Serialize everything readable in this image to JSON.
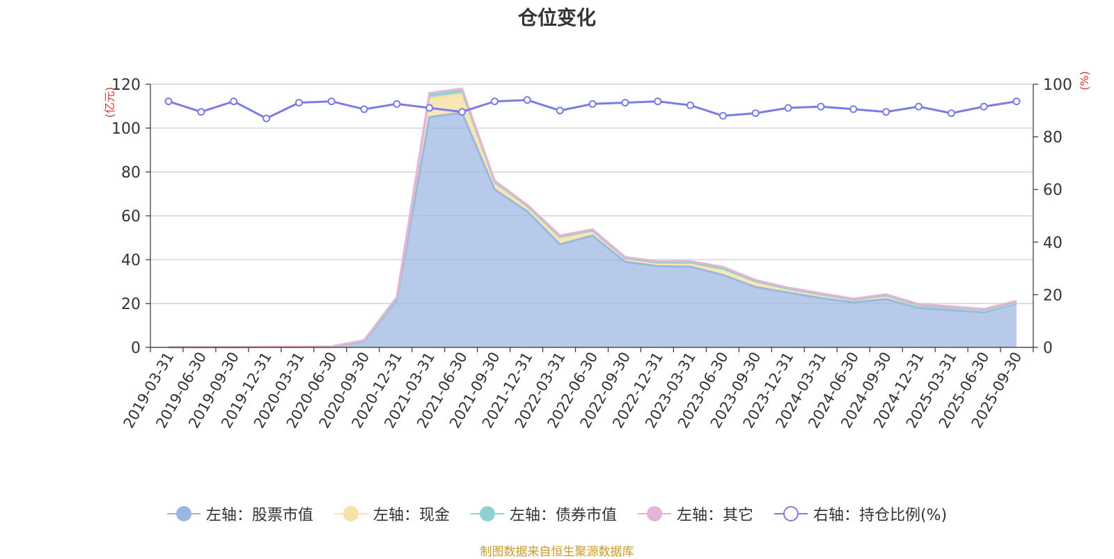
{
  "chart_data": {
    "type": "area",
    "title": "仓位变化",
    "categories": [
      "2019-03-31",
      "2019-06-30",
      "2019-09-30",
      "2019-12-31",
      "2020-03-31",
      "2020-06-30",
      "2020-09-30",
      "2020-12-31",
      "2021-03-31",
      "2021-06-30",
      "2021-09-30",
      "2021-12-31",
      "2022-03-31",
      "2022-06-30",
      "2022-09-30",
      "2022-12-31",
      "2023-03-31",
      "2023-06-30",
      "2023-09-30",
      "2023-12-31",
      "2024-03-31",
      "2024-06-30",
      "2024-09-30",
      "2024-12-31",
      "2025-03-31",
      "2025-06-30",
      "2025-09-30"
    ],
    "left_axis": {
      "unit": "(亿元)",
      "ylim": [
        0,
        120
      ],
      "ticks": [
        0,
        20,
        40,
        60,
        80,
        100,
        120
      ]
    },
    "right_axis": {
      "unit": "(%)",
      "ylim": [
        0,
        100
      ],
      "ticks": [
        0,
        20,
        40,
        60,
        80,
        100
      ]
    },
    "series": [
      {
        "name": "左轴：股票市值",
        "axis": "left",
        "stack": true,
        "color": "#9bb6e0",
        "values": [
          0.1,
          0.1,
          0.1,
          0.2,
          0.2,
          0.3,
          2.8,
          21.5,
          105,
          107,
          72,
          62,
          47,
          51,
          39,
          37,
          36.8,
          33,
          27.5,
          25,
          22.5,
          20.5,
          22,
          18,
          17,
          16,
          20
        ]
      },
      {
        "name": "左轴：现金",
        "axis": "left",
        "stack": true,
        "color": "#f7e2a6",
        "values": [
          0,
          0,
          0,
          0,
          0,
          0,
          0.3,
          1,
          8.5,
          8.5,
          2.5,
          2,
          3,
          2,
          1.5,
          1.5,
          1.7,
          2.7,
          2.5,
          1.5,
          1.5,
          1,
          1.5,
          1,
          1,
          0.8,
          0.5
        ]
      },
      {
        "name": "左轴：债券市值",
        "axis": "left",
        "stack": true,
        "color": "#8fd1d3",
        "values": [
          0,
          0,
          0,
          0,
          0,
          0,
          0,
          0,
          1.5,
          1.5,
          1,
          0.5,
          0.5,
          0.3,
          0.2,
          0.2,
          0.2,
          0.2,
          0.2,
          0.2,
          0.2,
          0.2,
          0.2,
          0.2,
          0.2,
          0.2,
          0.2
        ]
      },
      {
        "name": "左轴：其它",
        "axis": "left",
        "stack": true,
        "color": "#e5b4d7",
        "values": [
          0,
          0,
          0,
          0,
          0.1,
          0.1,
          0.2,
          0.5,
          1,
          1,
          0.5,
          0.5,
          0.5,
          0.5,
          0.5,
          0.5,
          0.6,
          0.8,
          0.5,
          0.5,
          0.5,
          0.5,
          0.5,
          0.5,
          0.5,
          0.5,
          0.5
        ]
      },
      {
        "name": "右轴：持仓比例(%)",
        "axis": "right",
        "stack": false,
        "color": "#7b7be8",
        "values": [
          93.5,
          89.5,
          93.5,
          87.0,
          93.0,
          93.5,
          90.5,
          92.5,
          91.0,
          89.5,
          93.5,
          94.0,
          90.0,
          92.5,
          93.0,
          93.5,
          92.0,
          88.0,
          89.0,
          91.0,
          91.5,
          90.5,
          89.5,
          91.5,
          89.0,
          91.5,
          93.5
        ]
      }
    ]
  },
  "footer": {
    "source": "制图数据来自恒生聚源数据库"
  }
}
